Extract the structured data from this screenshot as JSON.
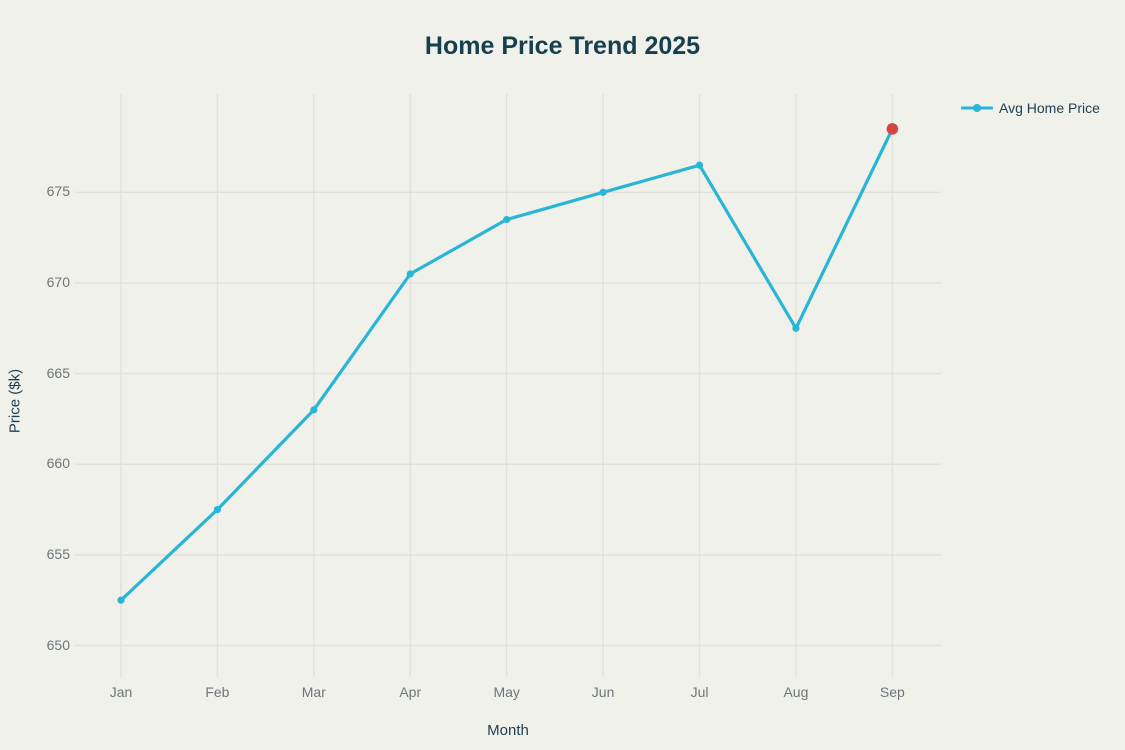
{
  "chart_data": {
    "type": "line",
    "title": "Home Price Trend 2025",
    "xlabel": "Month",
    "ylabel": "Price ($k)",
    "categories": [
      "Jan",
      "Feb",
      "Mar",
      "Apr",
      "May",
      "Jun",
      "Jul",
      "Aug",
      "Sep"
    ],
    "series": [
      {
        "name": "Avg Home Price",
        "values": [
          652.5,
          657.5,
          663,
          670.5,
          673.5,
          675,
          676.5,
          667.5,
          678.5
        ],
        "color": "#29b5d6"
      }
    ],
    "y_ticks": [
      650,
      655,
      660,
      665,
      670,
      675
    ],
    "ylim": [
      648.75,
      680.4
    ],
    "grid": true,
    "legend_position": "top-right",
    "highlight_point": {
      "category": "Sep",
      "value": 678.5,
      "color": "#d64540"
    },
    "colors": {
      "background": "#f1f1ec",
      "gridline": "#e2e2db",
      "tick_label": "#6e7578",
      "text": "#1d4150",
      "title": "#17404d",
      "line": "#29b5d6",
      "highlight": "#d64540"
    }
  }
}
